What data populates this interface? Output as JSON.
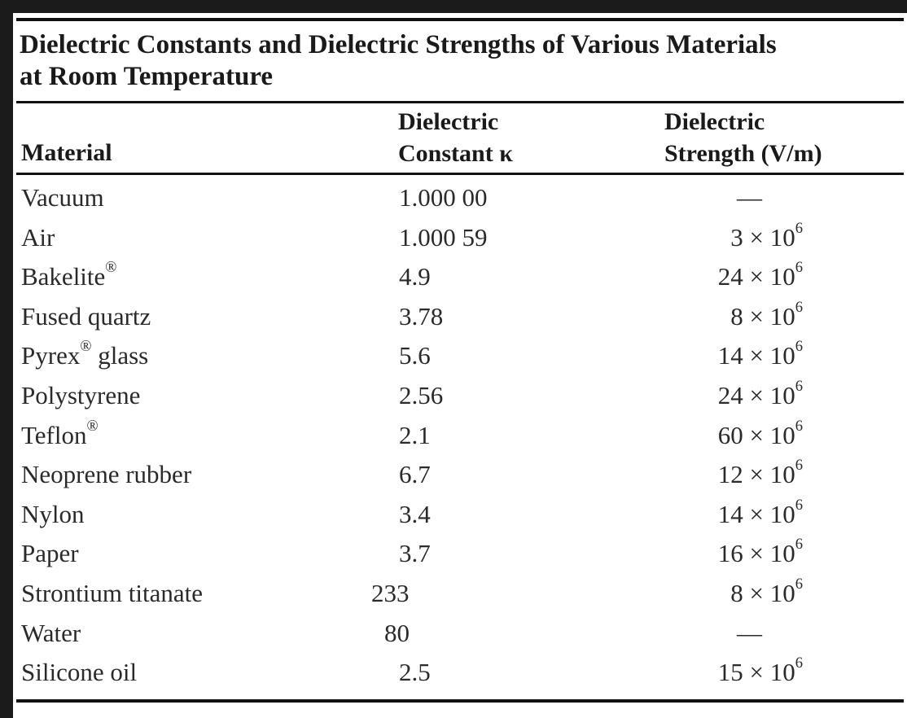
{
  "table": {
    "title_lines": [
      "Dielectric Constants and Dielectric Strengths of Various Materials",
      "at Room Temperature"
    ],
    "headers": {
      "material": "Material",
      "constant": [
        "Dielectric",
        "Constant κ"
      ],
      "strength": [
        "Dielectric",
        "Strength (V/m)"
      ]
    },
    "rows": [
      {
        "material": "Vacuum",
        "constant": "1.000 00",
        "strength": "—"
      },
      {
        "material": "Air",
        "constant": "1.000 59",
        "strength": "3 × 10",
        "exp": "6"
      },
      {
        "material": "Bakelite",
        "reg": "®",
        "constant": "4.9",
        "strength": "24 × 10",
        "exp": "6"
      },
      {
        "material": "Fused quartz",
        "constant": "3.78",
        "strength": "8 × 10",
        "exp": "6"
      },
      {
        "material": "Pyrex",
        "reg": "®",
        "material_suffix": " glass",
        "constant": "5.6",
        "strength": "14 × 10",
        "exp": "6"
      },
      {
        "material": "Polystyrene",
        "constant": "2.56",
        "strength": "24 × 10",
        "exp": "6"
      },
      {
        "material": "Teflon",
        "reg": "®",
        "constant": "2.1",
        "strength": "60 × 10",
        "exp": "6"
      },
      {
        "material": "Neoprene rubber",
        "constant": "6.7",
        "strength": "12 × 10",
        "exp": "6"
      },
      {
        "material": "Nylon",
        "constant": "3.4",
        "strength": "14 × 10",
        "exp": "6"
      },
      {
        "material": "Paper",
        "constant": "3.7",
        "strength": "16 × 10",
        "exp": "6"
      },
      {
        "material": "Strontium titanate",
        "constant": "233",
        "strength": "8 × 10",
        "exp": "6"
      },
      {
        "material": "Water",
        "constant": "80",
        "strength": "—"
      },
      {
        "material": "Silicone oil",
        "constant": "2.5",
        "strength": "15 × 10",
        "exp": "6"
      }
    ]
  }
}
